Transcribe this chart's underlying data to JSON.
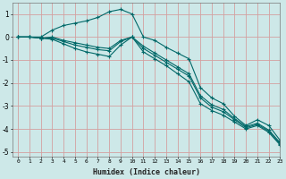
{
  "title": "",
  "xlabel": "Humidex (Indice chaleur)",
  "ylabel": "",
  "bg_color": "#cde8e8",
  "grid_color": "#d4a0a0",
  "line_color": "#006868",
  "xlim": [
    -0.5,
    23
  ],
  "ylim": [
    -5.2,
    1.5
  ],
  "yticks": [
    -5,
    -4,
    -3,
    -2,
    -1,
    0,
    1
  ],
  "xticks": [
    0,
    1,
    2,
    3,
    4,
    5,
    6,
    7,
    8,
    9,
    10,
    11,
    12,
    13,
    14,
    15,
    16,
    17,
    18,
    19,
    20,
    21,
    22,
    23
  ],
  "series": [
    [
      0.0,
      0.0,
      0.0,
      0.3,
      0.5,
      0.6,
      0.7,
      0.85,
      1.1,
      1.2,
      1.0,
      0.0,
      -0.15,
      -0.45,
      -0.7,
      -0.95,
      -2.2,
      -2.65,
      -2.9,
      -3.45,
      -3.85,
      -3.6,
      -3.85,
      -4.5
    ],
    [
      0.0,
      0.0,
      -0.05,
      0.0,
      -0.15,
      -0.25,
      -0.35,
      -0.45,
      -0.5,
      -0.15,
      0.0,
      -0.4,
      -0.7,
      -1.0,
      -1.3,
      -1.6,
      -2.55,
      -2.95,
      -3.15,
      -3.55,
      -3.9,
      -3.75,
      -4.05,
      -4.6
    ],
    [
      0.0,
      0.0,
      -0.05,
      -0.05,
      -0.2,
      -0.35,
      -0.45,
      -0.55,
      -0.6,
      -0.2,
      0.0,
      -0.5,
      -0.8,
      -1.1,
      -1.4,
      -1.7,
      -2.65,
      -3.05,
      -3.25,
      -3.6,
      -3.95,
      -3.8,
      -4.1,
      -4.65
    ],
    [
      0.0,
      0.0,
      -0.05,
      -0.1,
      -0.3,
      -0.5,
      -0.65,
      -0.75,
      -0.85,
      -0.35,
      0.0,
      -0.65,
      -0.95,
      -1.25,
      -1.6,
      -1.95,
      -2.9,
      -3.2,
      -3.4,
      -3.7,
      -4.0,
      -3.85,
      -4.15,
      -4.7
    ]
  ]
}
